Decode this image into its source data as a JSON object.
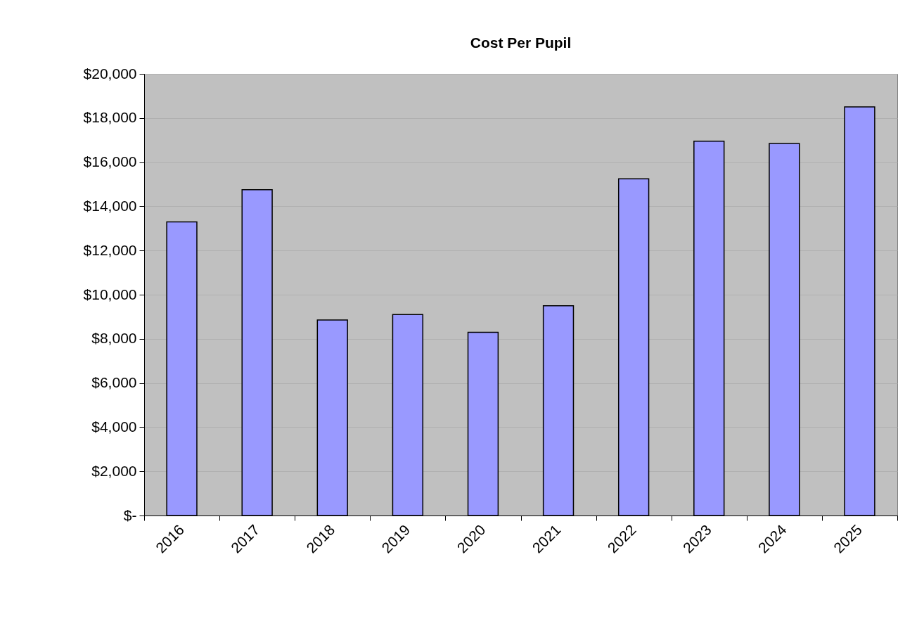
{
  "chart_data": {
    "type": "bar",
    "title": "Cost Per Pupil",
    "categories": [
      "2016",
      "2017",
      "2018",
      "2019",
      "2020",
      "2021",
      "2022",
      "2023",
      "2024",
      "2025"
    ],
    "values": [
      13300,
      14750,
      8850,
      9100,
      8300,
      9500,
      15250,
      16950,
      16850,
      18500
    ],
    "color": "#9999ff",
    "ylim": [
      0,
      20000
    ],
    "yticks": [
      {
        "value": 0,
        "label": "$-"
      },
      {
        "value": 2000,
        "label": "$2,000"
      },
      {
        "value": 4000,
        "label": "$4,000"
      },
      {
        "value": 6000,
        "label": "$6,000"
      },
      {
        "value": 8000,
        "label": "$8,000"
      },
      {
        "value": 10000,
        "label": "$10,000"
      },
      {
        "value": 12000,
        "label": "$12,000"
      },
      {
        "value": 14000,
        "label": "$14,000"
      },
      {
        "value": 16000,
        "label": "$16,000"
      },
      {
        "value": 18000,
        "label": "$18,000"
      },
      {
        "value": 20000,
        "label": "$20,000"
      }
    ],
    "grid": "y"
  }
}
